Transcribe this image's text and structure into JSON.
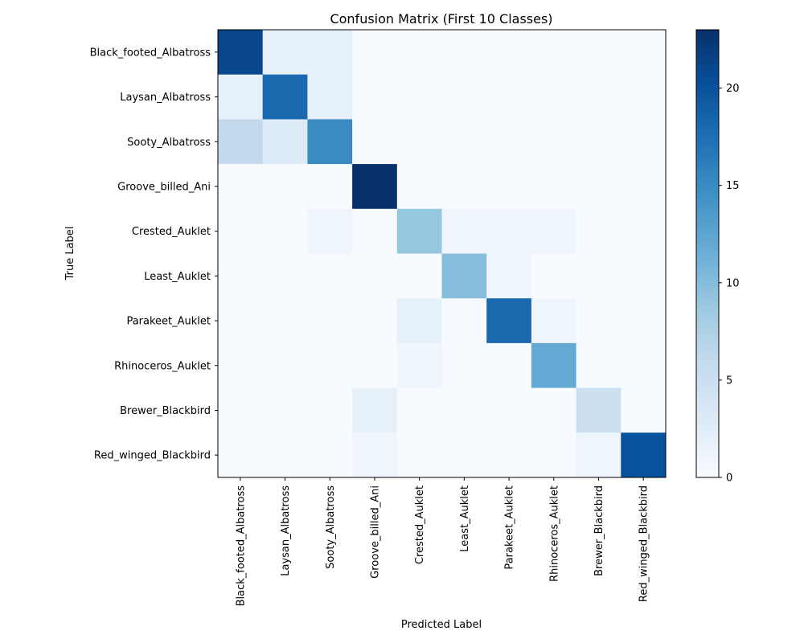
{
  "chart_data": {
    "type": "heatmap",
    "title": "Confusion Matrix (First 10 Classes)",
    "xlabel": "Predicted Label",
    "ylabel": "True Label",
    "x_categories": [
      "Black_footed_Albatross",
      "Laysan_Albatross",
      "Sooty_Albatross",
      "Groove_billed_Ani",
      "Crested_Auklet",
      "Least_Auklet",
      "Parakeet_Auklet",
      "Rhinoceros_Auklet",
      "Brewer_Blackbird",
      "Red_winged_Blackbird"
    ],
    "y_categories": [
      "Black_footed_Albatross",
      "Laysan_Albatross",
      "Sooty_Albatross",
      "Groove_billed_Ani",
      "Crested_Auklet",
      "Least_Auklet",
      "Parakeet_Auklet",
      "Rhinoceros_Auklet",
      "Brewer_Blackbird",
      "Red_winged_Blackbird"
    ],
    "values": [
      [
        21,
        2,
        2,
        0,
        0,
        0,
        0,
        0,
        0,
        0
      ],
      [
        2,
        18,
        2,
        0,
        0,
        0,
        0,
        0,
        0,
        0
      ],
      [
        6,
        3,
        15,
        0,
        0,
        0,
        0,
        0,
        0,
        0
      ],
      [
        0,
        0,
        0,
        23,
        0,
        0,
        0,
        0,
        0,
        0
      ],
      [
        0,
        0,
        1,
        0,
        9,
        1,
        1,
        1,
        0,
        0
      ],
      [
        0,
        0,
        0,
        0,
        0,
        10,
        1,
        0,
        0,
        0
      ],
      [
        0,
        0,
        0,
        0,
        2,
        0,
        18,
        1,
        0,
        0
      ],
      [
        0,
        0,
        0,
        0,
        1,
        0,
        0,
        12,
        0,
        0
      ],
      [
        0,
        0,
        0,
        2,
        0,
        0,
        0,
        0,
        5,
        0
      ],
      [
        0,
        0,
        0,
        1,
        0,
        0,
        0,
        0,
        1,
        20
      ]
    ],
    "colorbar": {
      "min": 0,
      "max": 23,
      "ticks": [
        0,
        5,
        10,
        15,
        20
      ]
    },
    "colormap": "Blues",
    "grid": false
  }
}
